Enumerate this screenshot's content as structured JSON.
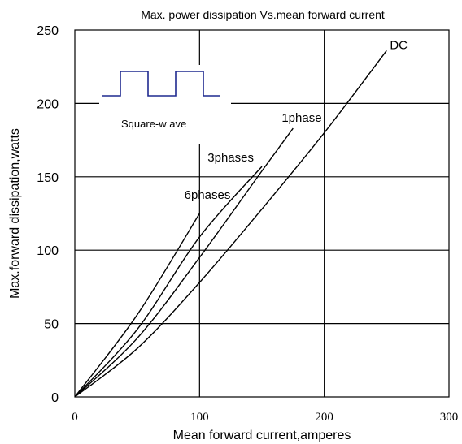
{
  "chart_data": {
    "type": "line",
    "title": "Max. power dissipation  Vs.mean forward current",
    "xlabel": "Mean forward  current,amperes",
    "ylabel": "Max.forward dissipation,watts",
    "xlim": [
      0,
      300
    ],
    "ylim": [
      0,
      250
    ],
    "xticks": [
      "0",
      "100",
      "200",
      "300"
    ],
    "yticks": [
      "0",
      "50",
      "100",
      "150",
      "200",
      "250"
    ],
    "grid": true,
    "series": [
      {
        "name": "DC",
        "x": [
          0,
          50,
          100,
          150,
          200,
          250
        ],
        "y": [
          0,
          33,
          78,
          128,
          180,
          236
        ]
      },
      {
        "name": "1phase",
        "x": [
          0,
          50,
          100,
          150,
          175
        ],
        "y": [
          0,
          40,
          95,
          154,
          183
        ]
      },
      {
        "name": "3phases",
        "x": [
          0,
          50,
          100,
          150
        ],
        "y": [
          0,
          46,
          109,
          157
        ]
      },
      {
        "name": "6phases",
        "x": [
          0,
          50,
          100
        ],
        "y": [
          0,
          56,
          125
        ]
      }
    ],
    "inset_label": "Square-w ave"
  }
}
